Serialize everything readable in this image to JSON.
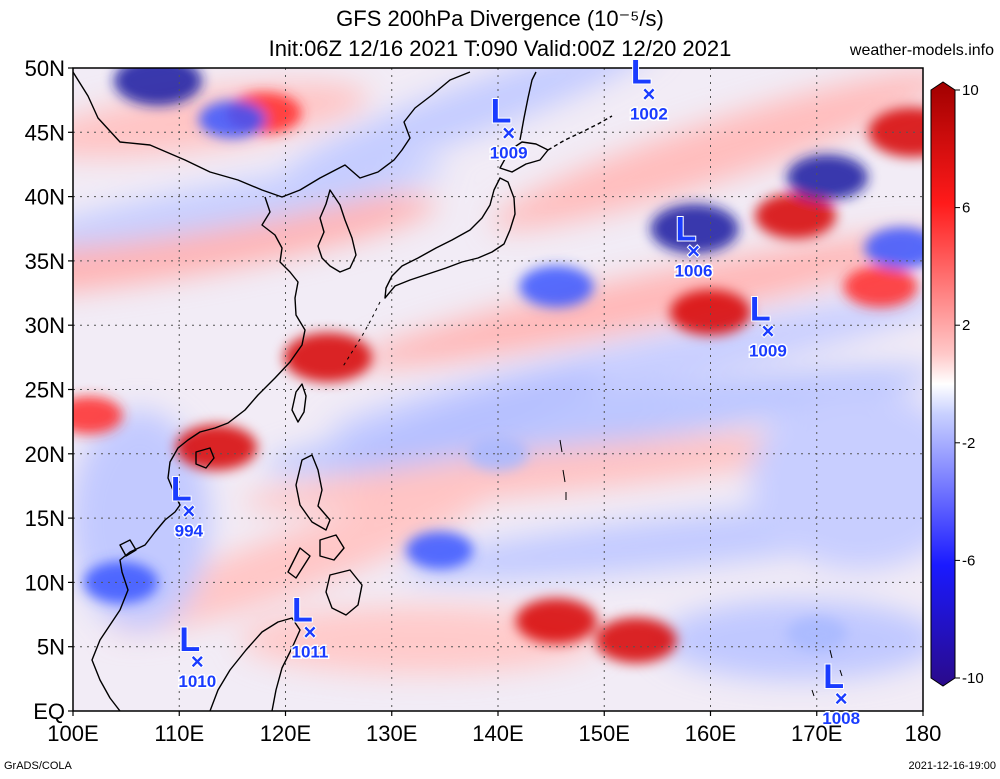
{
  "title": {
    "line1": "GFS 200hPa Divergence (10⁻⁵/s)",
    "line2": "Init:06Z 12/16 2021 T:090 Valid:00Z 12/20 2021"
  },
  "site": "weather-models.info",
  "credit_left": "GrADS/COLA",
  "credit_right": "2021-12-16-19:00",
  "map_extent": {
    "lon_min": 100,
    "lon_max": 180,
    "lat_min": 0,
    "lat_max": 50
  },
  "lat_labels": [
    {
      "lat": 50,
      "label": "50N"
    },
    {
      "lat": 45,
      "label": "45N"
    },
    {
      "lat": 40,
      "label": "40N"
    },
    {
      "lat": 35,
      "label": "35N"
    },
    {
      "lat": 30,
      "label": "30N"
    },
    {
      "lat": 25,
      "label": "25N"
    },
    {
      "lat": 20,
      "label": "20N"
    },
    {
      "lat": 15,
      "label": "15N"
    },
    {
      "lat": 10,
      "label": "10N"
    },
    {
      "lat": 5,
      "label": "5N"
    },
    {
      "lat": 0,
      "label": "EQ"
    }
  ],
  "lon_labels": [
    {
      "lon": 100,
      "label": "100E"
    },
    {
      "lon": 110,
      "label": "110E"
    },
    {
      "lon": 120,
      "label": "120E"
    },
    {
      "lon": 130,
      "label": "130E"
    },
    {
      "lon": 140,
      "label": "140E"
    },
    {
      "lon": 150,
      "label": "150E"
    },
    {
      "lon": 160,
      "label": "160E"
    },
    {
      "lon": 170,
      "label": "170E"
    },
    {
      "lon": 180,
      "label": "180"
    }
  ],
  "colorbar": {
    "min": -10,
    "max": 10,
    "labels": [
      {
        "value": 10,
        "label": "10"
      },
      {
        "value": 6,
        "label": "6"
      },
      {
        "value": 2,
        "label": "2"
      },
      {
        "value": -2,
        "label": "-2"
      },
      {
        "value": -6,
        "label": "-6"
      },
      {
        "value": -10,
        "label": "-10"
      }
    ]
  },
  "colors": {
    "strong_pos": "#d60000",
    "mid_pos": "#ff2a2a",
    "weak_pos": "#ff9a9a",
    "weak_neg": "#a8b8ff",
    "mid_neg": "#3a55ff",
    "strong_neg": "#1a1aa0",
    "low_marker": "#1a3cff",
    "coast": "#000000"
  },
  "lows": [
    {
      "lon": 154.2,
      "lat": 48.0,
      "pressure": "1002",
      "letter": "L",
      "marker": "×"
    },
    {
      "lon": 141.0,
      "lat": 45.0,
      "pressure": "1009",
      "letter": "L",
      "marker": "×"
    },
    {
      "lon": 158.4,
      "lat": 35.8,
      "pressure": "1006",
      "letter": "L",
      "marker": "×"
    },
    {
      "lon": 165.4,
      "lat": 29.6,
      "pressure": "1009",
      "letter": "L",
      "marker": "×"
    },
    {
      "lon": 110.9,
      "lat": 15.6,
      "pressure": "994",
      "letter": "L",
      "marker": "×"
    },
    {
      "lon": 122.3,
      "lat": 6.2,
      "pressure": "1011",
      "letter": "L",
      "marker": "×"
    },
    {
      "lon": 111.7,
      "lat": 3.9,
      "pressure": "1010",
      "letter": "L",
      "marker": "×"
    },
    {
      "lon": 172.3,
      "lat": 1.0,
      "pressure": "1008",
      "letter": "L",
      "marker": "×"
    }
  ],
  "divergence_features": [
    {
      "lon": 124,
      "lat": 27.5,
      "value": 8
    },
    {
      "lon": 113.5,
      "lat": 20.5,
      "value": 7
    },
    {
      "lon": 160,
      "lat": 31,
      "value": 7
    },
    {
      "lon": 168,
      "lat": 38.5,
      "value": 7
    },
    {
      "lon": 179,
      "lat": 45,
      "value": 8
    },
    {
      "lon": 176,
      "lat": 33,
      "value": 6
    },
    {
      "lon": 145.5,
      "lat": 7,
      "value": 7
    },
    {
      "lon": 153,
      "lat": 5.5,
      "value": 7
    },
    {
      "lon": 118,
      "lat": 46.5,
      "value": 6
    },
    {
      "lon": 101.5,
      "lat": 23,
      "value": 5
    },
    {
      "lon": 108,
      "lat": 49,
      "value": -8
    },
    {
      "lon": 158.5,
      "lat": 37.5,
      "value": -8
    },
    {
      "lon": 145.5,
      "lat": 33,
      "value": -6
    },
    {
      "lon": 171,
      "lat": 41.5,
      "value": -7
    },
    {
      "lon": 178,
      "lat": 36,
      "value": -6
    },
    {
      "lon": 104.5,
      "lat": 10,
      "value": -6
    },
    {
      "lon": 134.5,
      "lat": 12.5,
      "value": -5
    },
    {
      "lon": 115,
      "lat": 46,
      "value": -5
    },
    {
      "lon": 140,
      "lat": 20,
      "value": -4
    },
    {
      "lon": 170,
      "lat": 6,
      "value": -4
    }
  ]
}
